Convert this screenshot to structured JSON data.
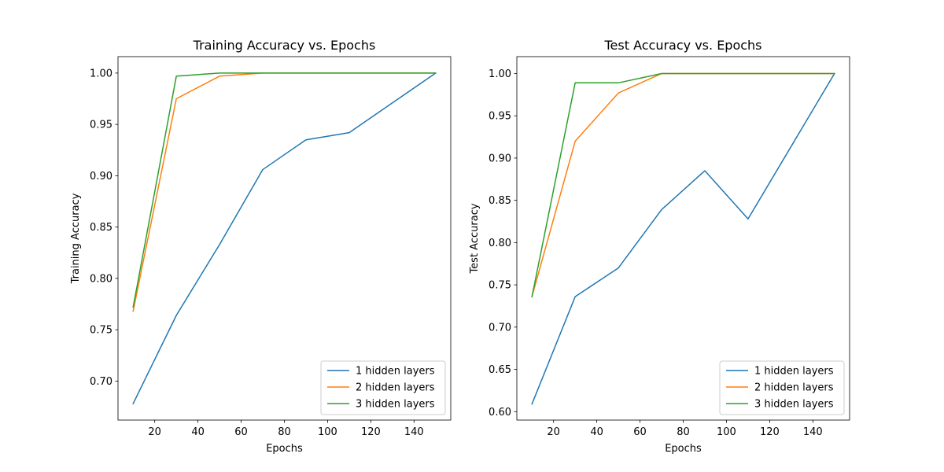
{
  "chart_data": [
    {
      "type": "line",
      "title": "Training Accuracy vs. Epochs",
      "xlabel": "Epochs",
      "ylabel": "Training Accuracy",
      "xlim": [
        3,
        157
      ],
      "ylim": [
        0.662,
        1.016
      ],
      "x_ticks": [
        20,
        40,
        60,
        80,
        100,
        120,
        140
      ],
      "y_ticks": [
        0.7,
        0.75,
        0.8,
        0.85,
        0.9,
        0.95,
        1.0
      ],
      "legend_position": "lower-right",
      "series": [
        {
          "name": "1 hidden layers",
          "color": "#1f77b4",
          "x": [
            10,
            30,
            50,
            70,
            90,
            110,
            150
          ],
          "y": [
            0.678,
            0.764,
            0.833,
            0.906,
            0.935,
            0.942,
            1.0
          ]
        },
        {
          "name": "2 hidden layers",
          "color": "#ff7f0e",
          "x": [
            10,
            30,
            50,
            70,
            90,
            110,
            150
          ],
          "y": [
            0.768,
            0.975,
            0.997,
            1.0,
            1.0,
            1.0,
            1.0
          ]
        },
        {
          "name": "3 hidden layers",
          "color": "#2ca02c",
          "x": [
            10,
            30,
            50,
            70,
            90,
            110,
            150
          ],
          "y": [
            0.772,
            0.997,
            1.0,
            1.0,
            1.0,
            1.0,
            1.0
          ]
        }
      ]
    },
    {
      "type": "line",
      "title": "Test Accuracy vs. Epochs",
      "xlabel": "Epochs",
      "ylabel": "Test Accuracy",
      "xlim": [
        3,
        157
      ],
      "ylim": [
        0.59,
        1.02
      ],
      "x_ticks": [
        20,
        40,
        60,
        80,
        100,
        120,
        140
      ],
      "y_ticks": [
        0.6,
        0.65,
        0.7,
        0.75,
        0.8,
        0.85,
        0.9,
        0.95,
        1.0
      ],
      "legend_position": "lower-right",
      "series": [
        {
          "name": "1 hidden layers",
          "color": "#1f77b4",
          "x": [
            10,
            30,
            50,
            70,
            90,
            110,
            150
          ],
          "y": [
            0.609,
            0.736,
            0.77,
            0.839,
            0.885,
            0.828,
            1.0
          ]
        },
        {
          "name": "2 hidden layers",
          "color": "#ff7f0e",
          "x": [
            10,
            30,
            50,
            70,
            90,
            110,
            150
          ],
          "y": [
            0.736,
            0.92,
            0.977,
            1.0,
            1.0,
            1.0,
            1.0
          ]
        },
        {
          "name": "3 hidden layers",
          "color": "#2ca02c",
          "x": [
            10,
            30,
            50,
            70,
            90,
            110,
            150
          ],
          "y": [
            0.736,
            0.989,
            0.989,
            1.0,
            1.0,
            1.0,
            1.0
          ]
        }
      ]
    }
  ]
}
